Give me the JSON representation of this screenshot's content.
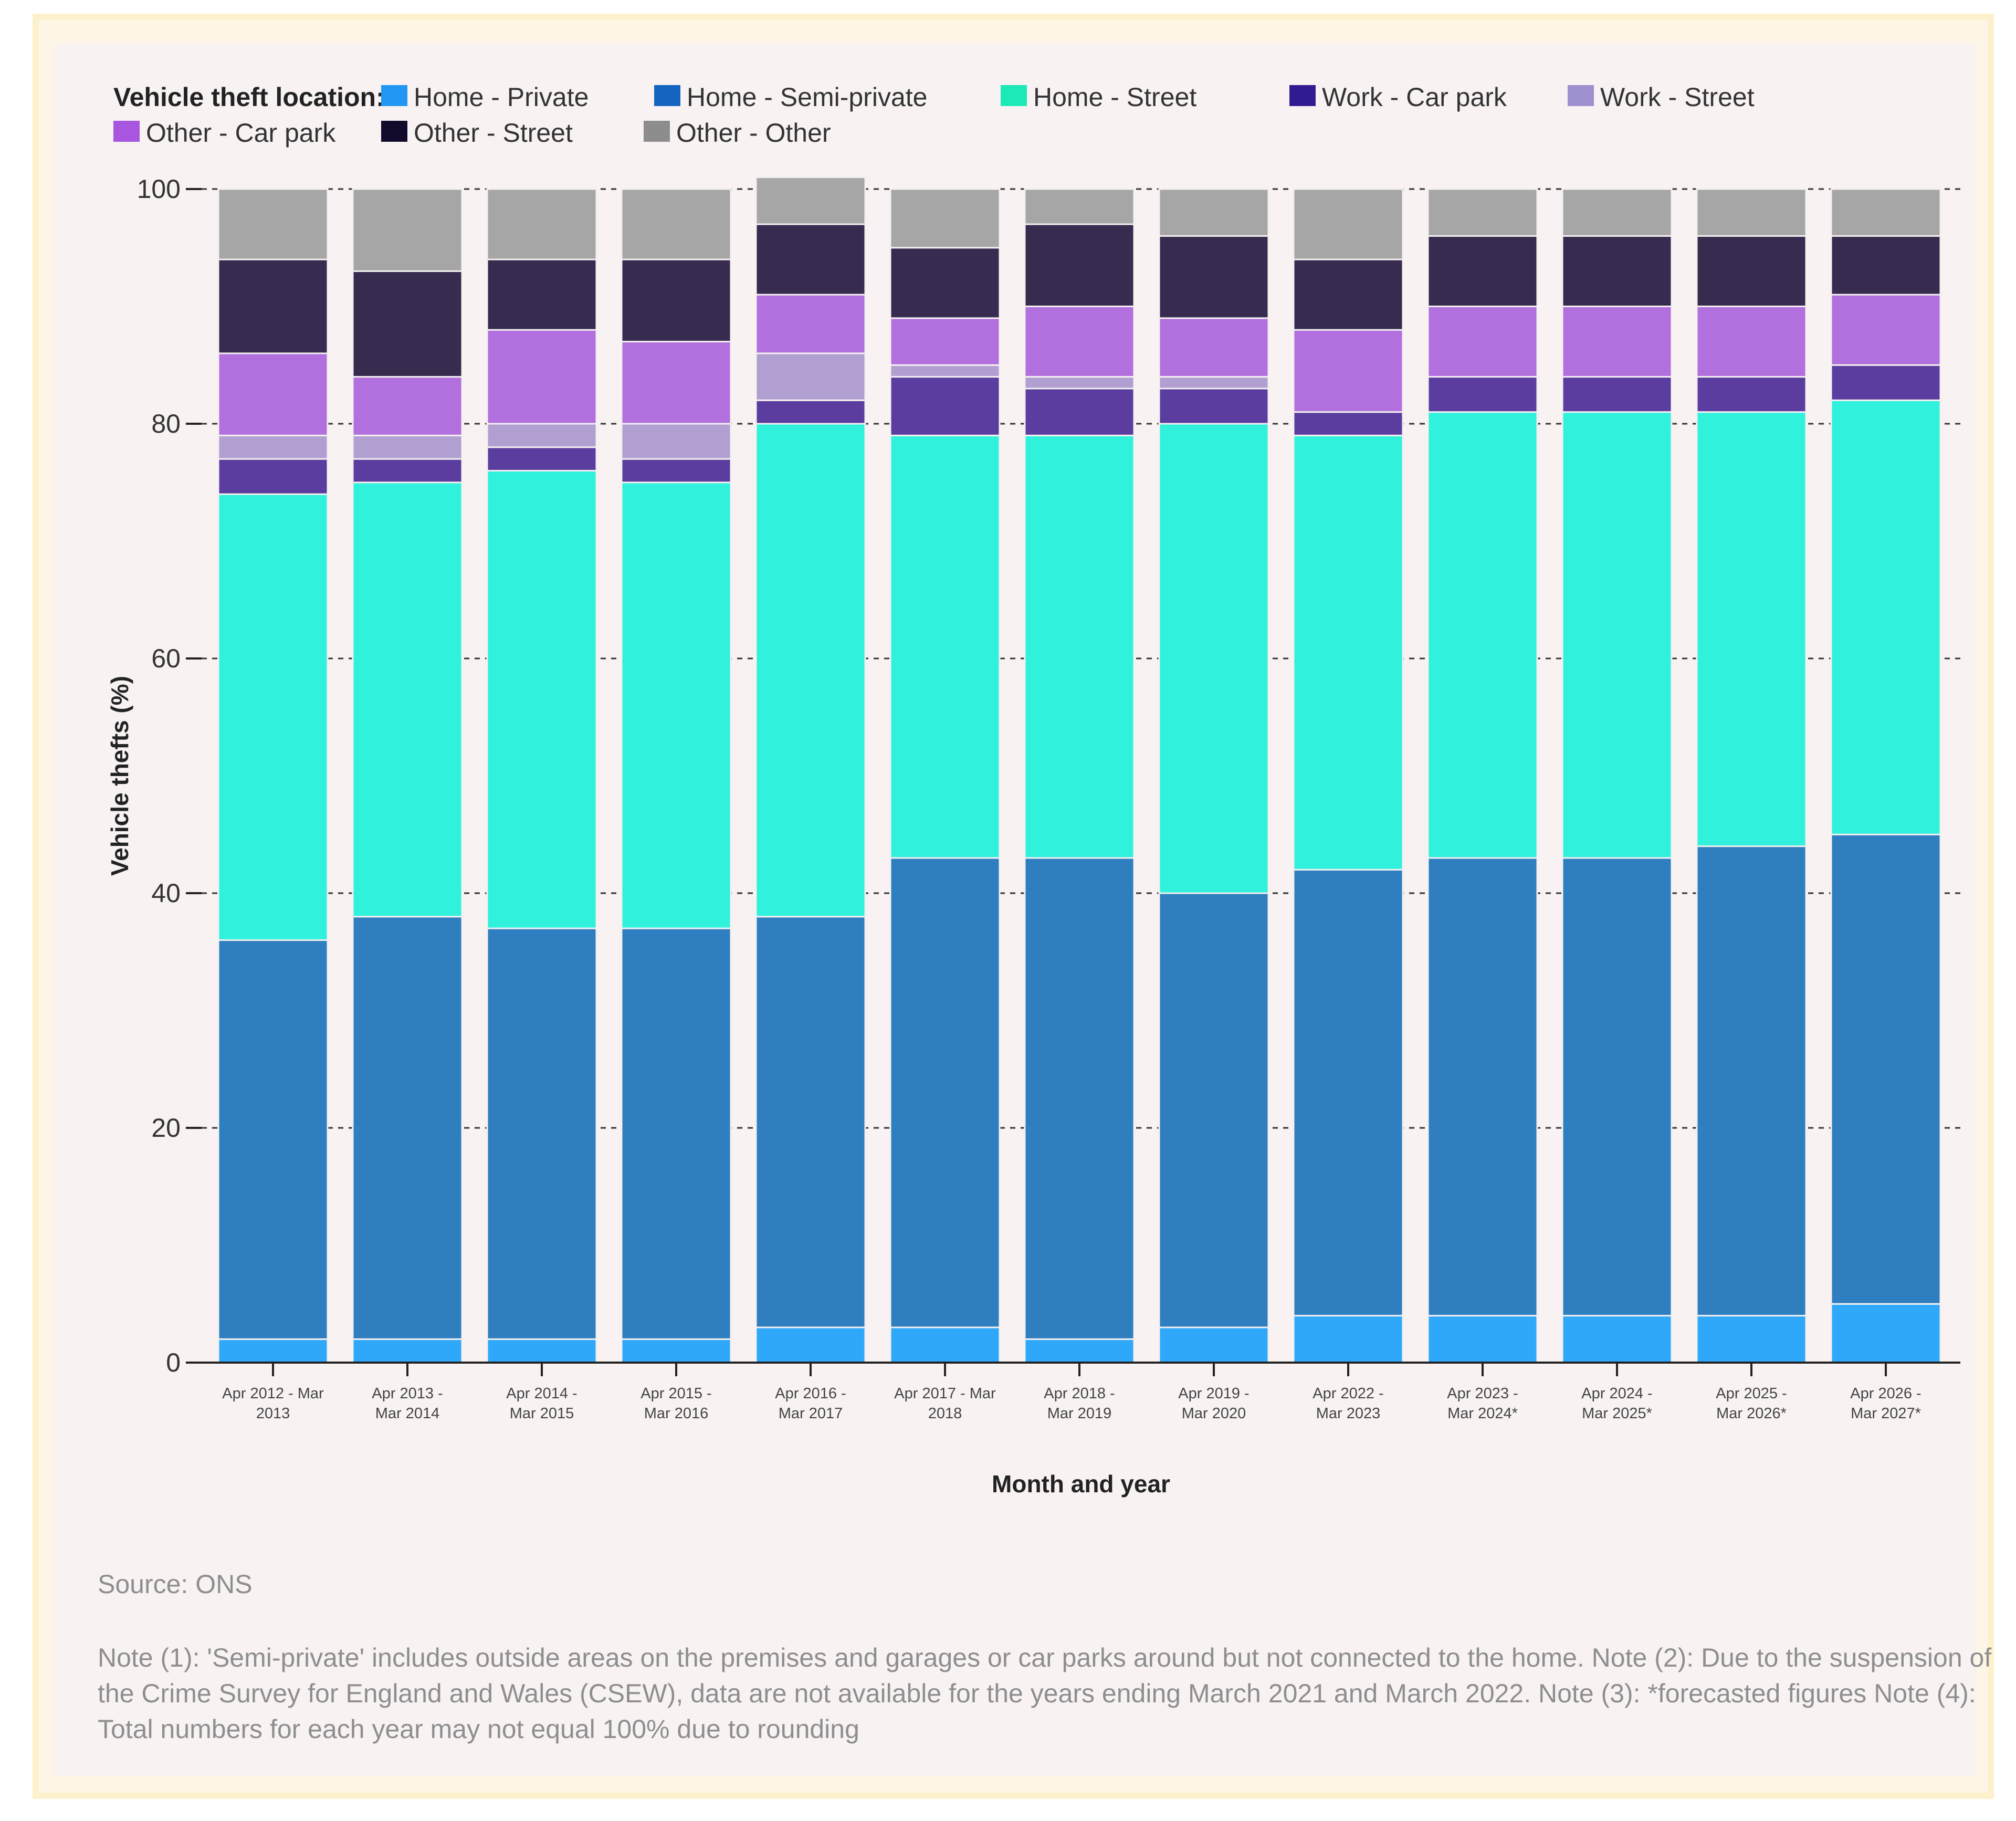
{
  "chart_data": {
    "type": "bar",
    "stacked": true,
    "legend_title": "Vehicle theft location:",
    "legend_position": "top",
    "categories": [
      "Apr 2012 - Mar 2013",
      "Apr 2013 - Mar 2014",
      "Apr 2014 - Mar 2015",
      "Apr 2015 - Mar 2016",
      "Apr 2016 - Mar 2017",
      "Apr 2017 - Mar 2018",
      "Apr 2018 - Mar 2019",
      "Apr 2019 - Mar 2020",
      "Apr 2022 - Mar 2023",
      "Apr 2023 - Mar 2024*",
      "Apr 2024 - Mar 2025*",
      "Apr 2025 - Mar 2026*",
      "Apr 2026 - Mar 2027*"
    ],
    "category_lines": [
      [
        "Apr 2012 - Mar",
        "2013"
      ],
      [
        "Apr 2013 -",
        "Mar 2014"
      ],
      [
        "Apr 2014 -",
        "Mar 2015"
      ],
      [
        "Apr 2015 -",
        "Mar 2016"
      ],
      [
        "Apr 2016 -",
        "Mar 2017"
      ],
      [
        "Apr 2017 - Mar",
        "2018"
      ],
      [
        "Apr 2018 -",
        "Mar 2019"
      ],
      [
        "Apr 2019 -",
        "Mar 2020"
      ],
      [
        "Apr 2022 -",
        "Mar 2023"
      ],
      [
        "Apr 2023 -",
        "Mar 2024*"
      ],
      [
        "Apr 2024 -",
        "Mar 2025*"
      ],
      [
        "Apr 2025 -",
        "Mar 2026*"
      ],
      [
        "Apr 2026 -",
        "Mar 2027*"
      ]
    ],
    "series": [
      {
        "name": "Home - Private",
        "color": "#2fa8fa",
        "values": [
          2,
          2,
          2,
          2,
          3,
          3,
          2,
          3,
          4,
          4,
          4,
          4,
          5
        ]
      },
      {
        "name": "Home - Semi-private",
        "color": "#2f7ebf",
        "values": [
          34,
          36,
          35,
          35,
          35,
          40,
          41,
          37,
          38,
          39,
          39,
          40,
          40
        ]
      },
      {
        "name": "Home - Street",
        "color": "#2ff1dc",
        "values": [
          38,
          37,
          39,
          38,
          42,
          36,
          36,
          40,
          37,
          38,
          38,
          37,
          37
        ]
      },
      {
        "name": "Work - Car park",
        "color": "#5a3d9e",
        "values": [
          3,
          2,
          2,
          2,
          2,
          5,
          4,
          3,
          2,
          3,
          3,
          3,
          3
        ]
      },
      {
        "name": "Work - Street",
        "color": "#b09fd0",
        "values": [
          2,
          2,
          2,
          3,
          4,
          1,
          1,
          1,
          0,
          0,
          0,
          0,
          0
        ]
      },
      {
        "name": "Other - Car park",
        "color": "#b26fde",
        "values": [
          7,
          5,
          8,
          7,
          5,
          4,
          6,
          5,
          7,
          6,
          6,
          6,
          6
        ]
      },
      {
        "name": "Other - Street",
        "color": "#372b4f",
        "values": [
          8,
          9,
          6,
          7,
          6,
          6,
          7,
          7,
          6,
          6,
          6,
          6,
          5
        ]
      },
      {
        "name": "Other - Other",
        "color": "#a6a6a6",
        "values": [
          6,
          7,
          6,
          6,
          4,
          5,
          3,
          4,
          6,
          4,
          4,
          4,
          4
        ]
      }
    ],
    "legend_swatch_colors": [
      "#2196f3",
      "#1565c0",
      "#1de9b6",
      "#311b92",
      "#9e8fcf",
      "#a855e0",
      "#120a2a",
      "#8d8d8d"
    ],
    "ylabel": "Vehicle thefts (%)",
    "xlabel": "Month and year",
    "ylim": [
      0,
      100
    ],
    "yticks": [
      0,
      20,
      40,
      60,
      80,
      100
    ],
    "grid": true
  },
  "source": "Source: ONS",
  "note": "Note (1): 'Semi-private' includes outside areas on the premises and garages or car parks around but not connected to the home. Note (2): Due to the suspension of the Crime Survey for England and Wales (CSEW), data are not available for the years ending March 2021 and March 2022. Note (3): *forecasted figures Note (4): Total numbers for each year may not equal 100% due to rounding"
}
